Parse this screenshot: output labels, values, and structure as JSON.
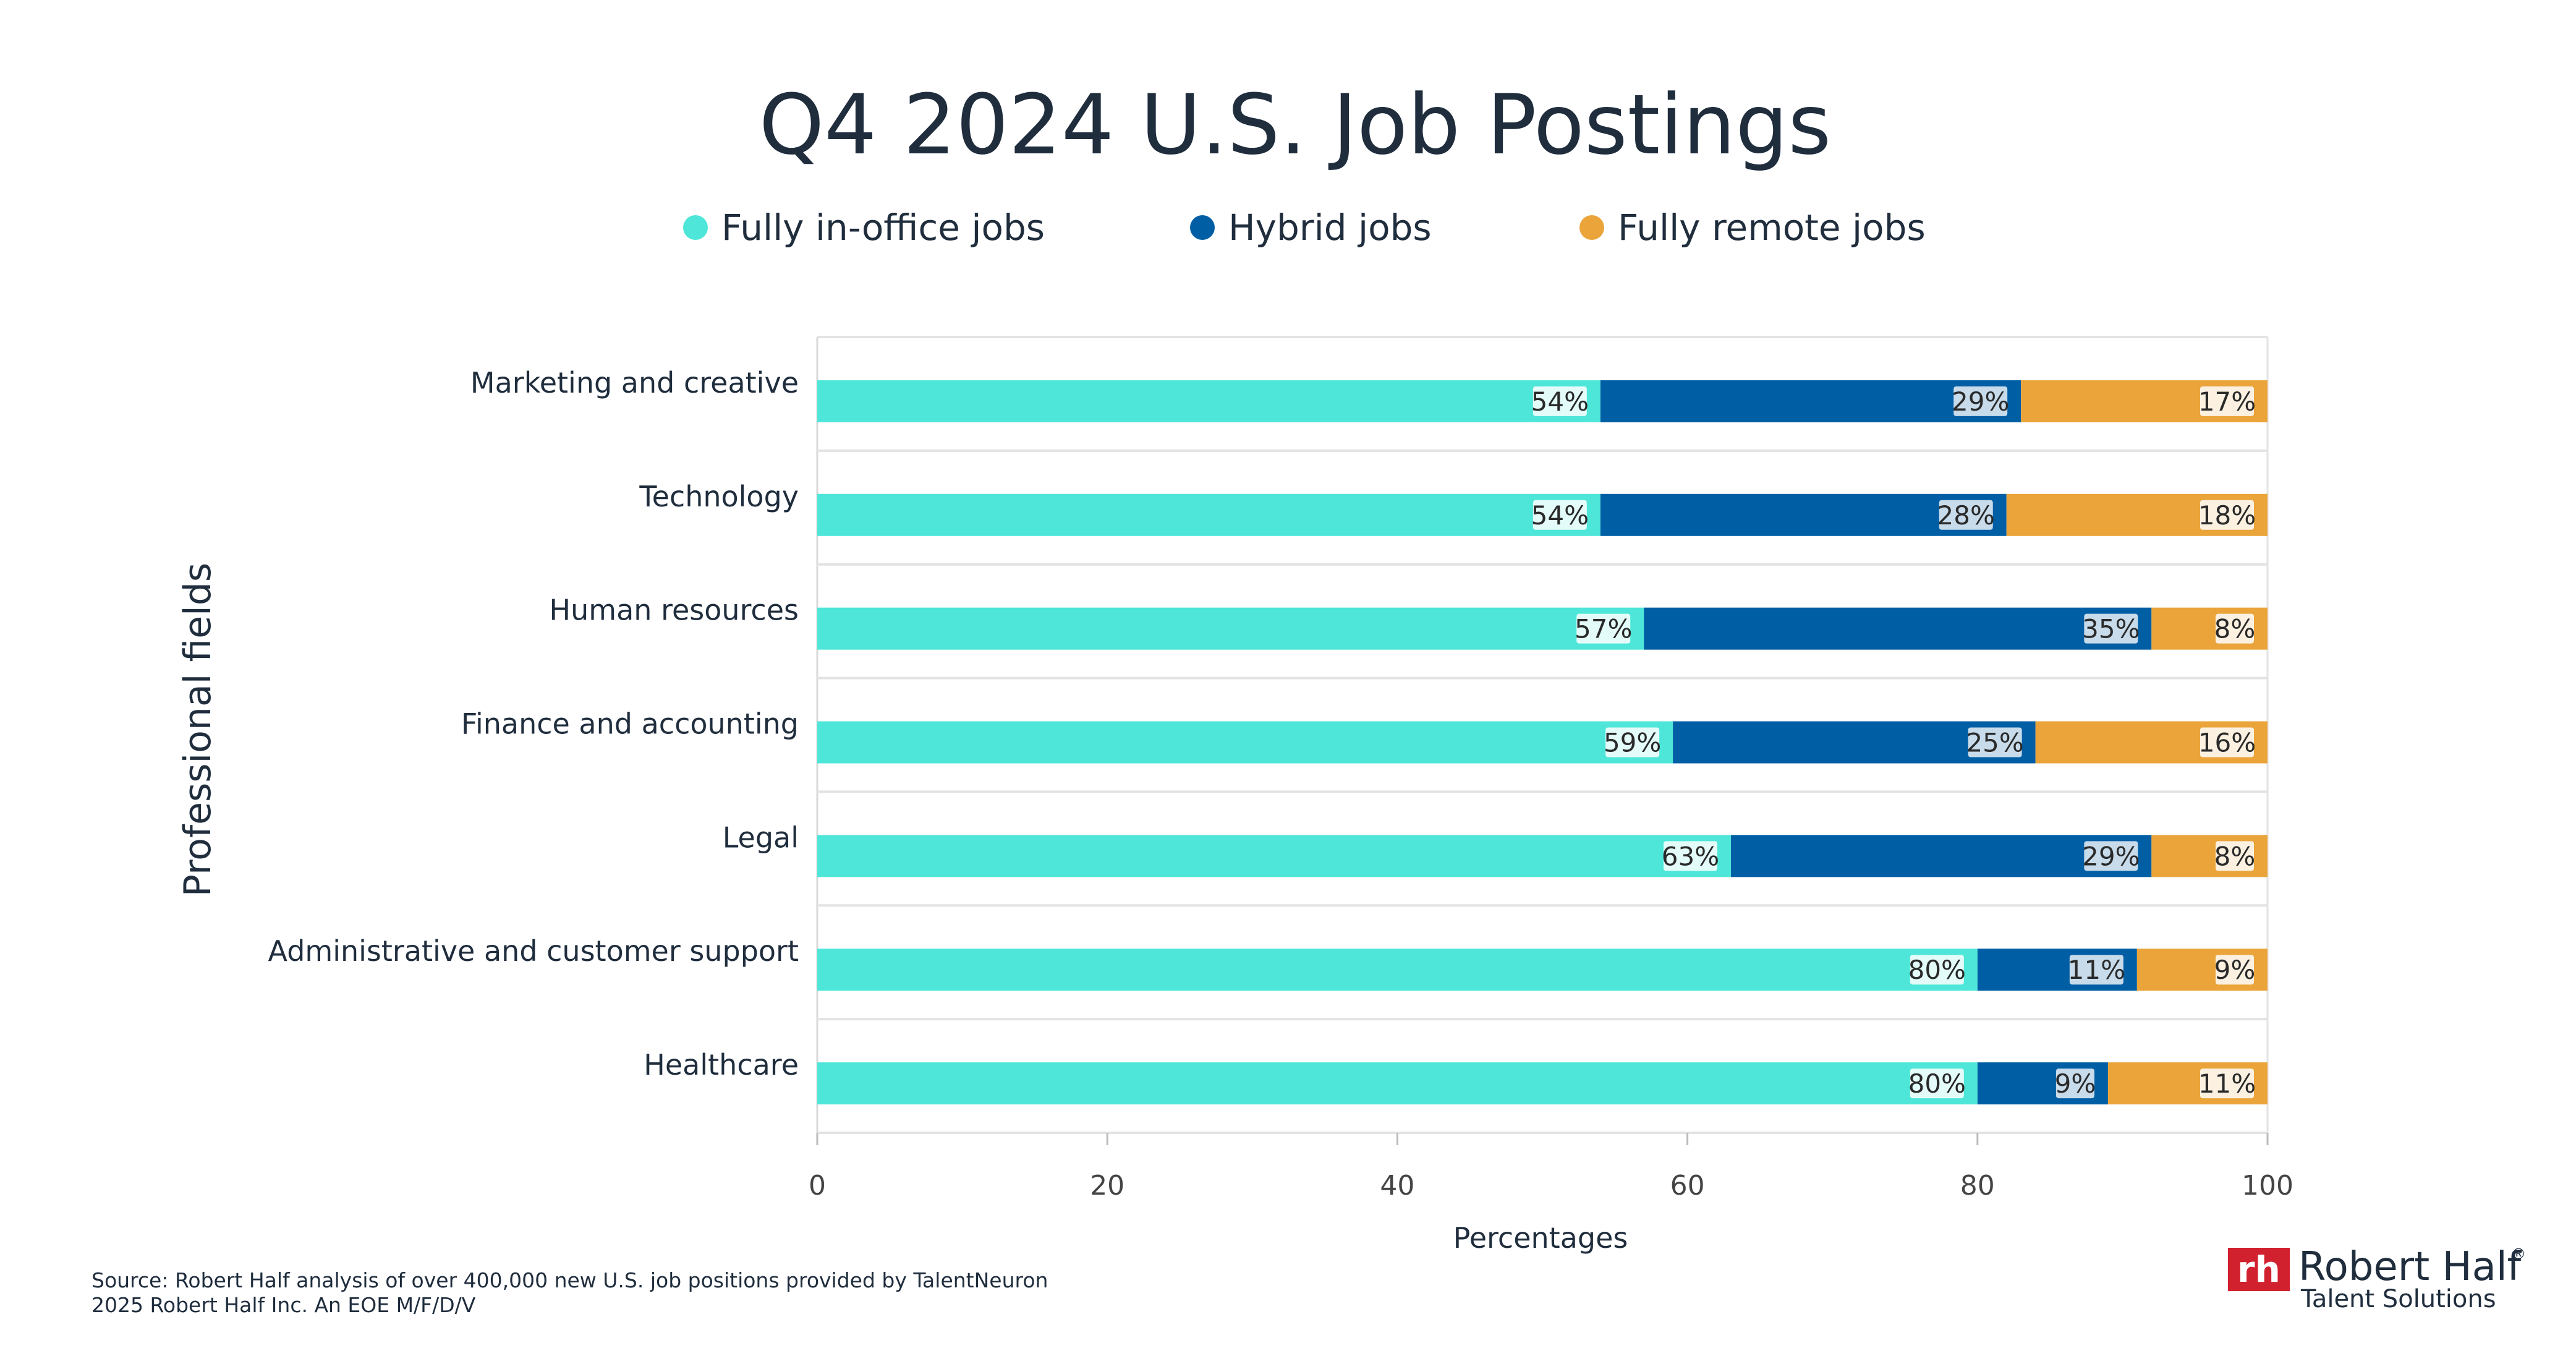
{
  "chart_data": {
    "type": "bar",
    "orientation": "horizontal",
    "stacked": true,
    "title": "Q4 2024 U.S. Job Postings",
    "xlabel": "Percentages",
    "ylabel": "Professional fields",
    "xlim": [
      0,
      100
    ],
    "xticks": [
      "0",
      "20",
      "40",
      "60",
      "80",
      "100"
    ],
    "legend_position": "top-center",
    "categories": [
      "Marketing and creative",
      "Technology",
      "Human resources",
      "Finance and accounting",
      "Legal",
      "Administrative and customer support",
      "Healthcare"
    ],
    "series": [
      {
        "name": "Fully in-office jobs",
        "color": "#4de6d8",
        "values": [
          54,
          54,
          57,
          59,
          63,
          80,
          80
        ],
        "labels": [
          "54%",
          "54%",
          "57%",
          "59%",
          "63%",
          "80%",
          "80%"
        ]
      },
      {
        "name": "Hybrid jobs",
        "color": "#005ea5",
        "values": [
          29,
          28,
          35,
          25,
          29,
          11,
          9
        ],
        "labels": [
          "29%",
          "28%",
          "35%",
          "25%",
          "29%",
          "11%",
          "9%"
        ]
      },
      {
        "name": "Fully remote jobs",
        "color": "#eaa43a",
        "values": [
          17,
          18,
          8,
          16,
          8,
          9,
          11
        ],
        "labels": [
          "17%",
          "18%",
          "8%",
          "16%",
          "8%",
          "9%",
          "11%"
        ]
      }
    ]
  },
  "footer": {
    "source": "Source: Robert Half analysis of over 400,000 new U.S. job positions provided by TalentNeuron",
    "copyright": "2025 Robert Half Inc. An EOE M/F/D/V"
  },
  "logo": {
    "mark": "rh",
    "name": "Robert Half",
    "registered": "®",
    "subtitle": "Talent Solutions",
    "color": "#d1202e"
  }
}
